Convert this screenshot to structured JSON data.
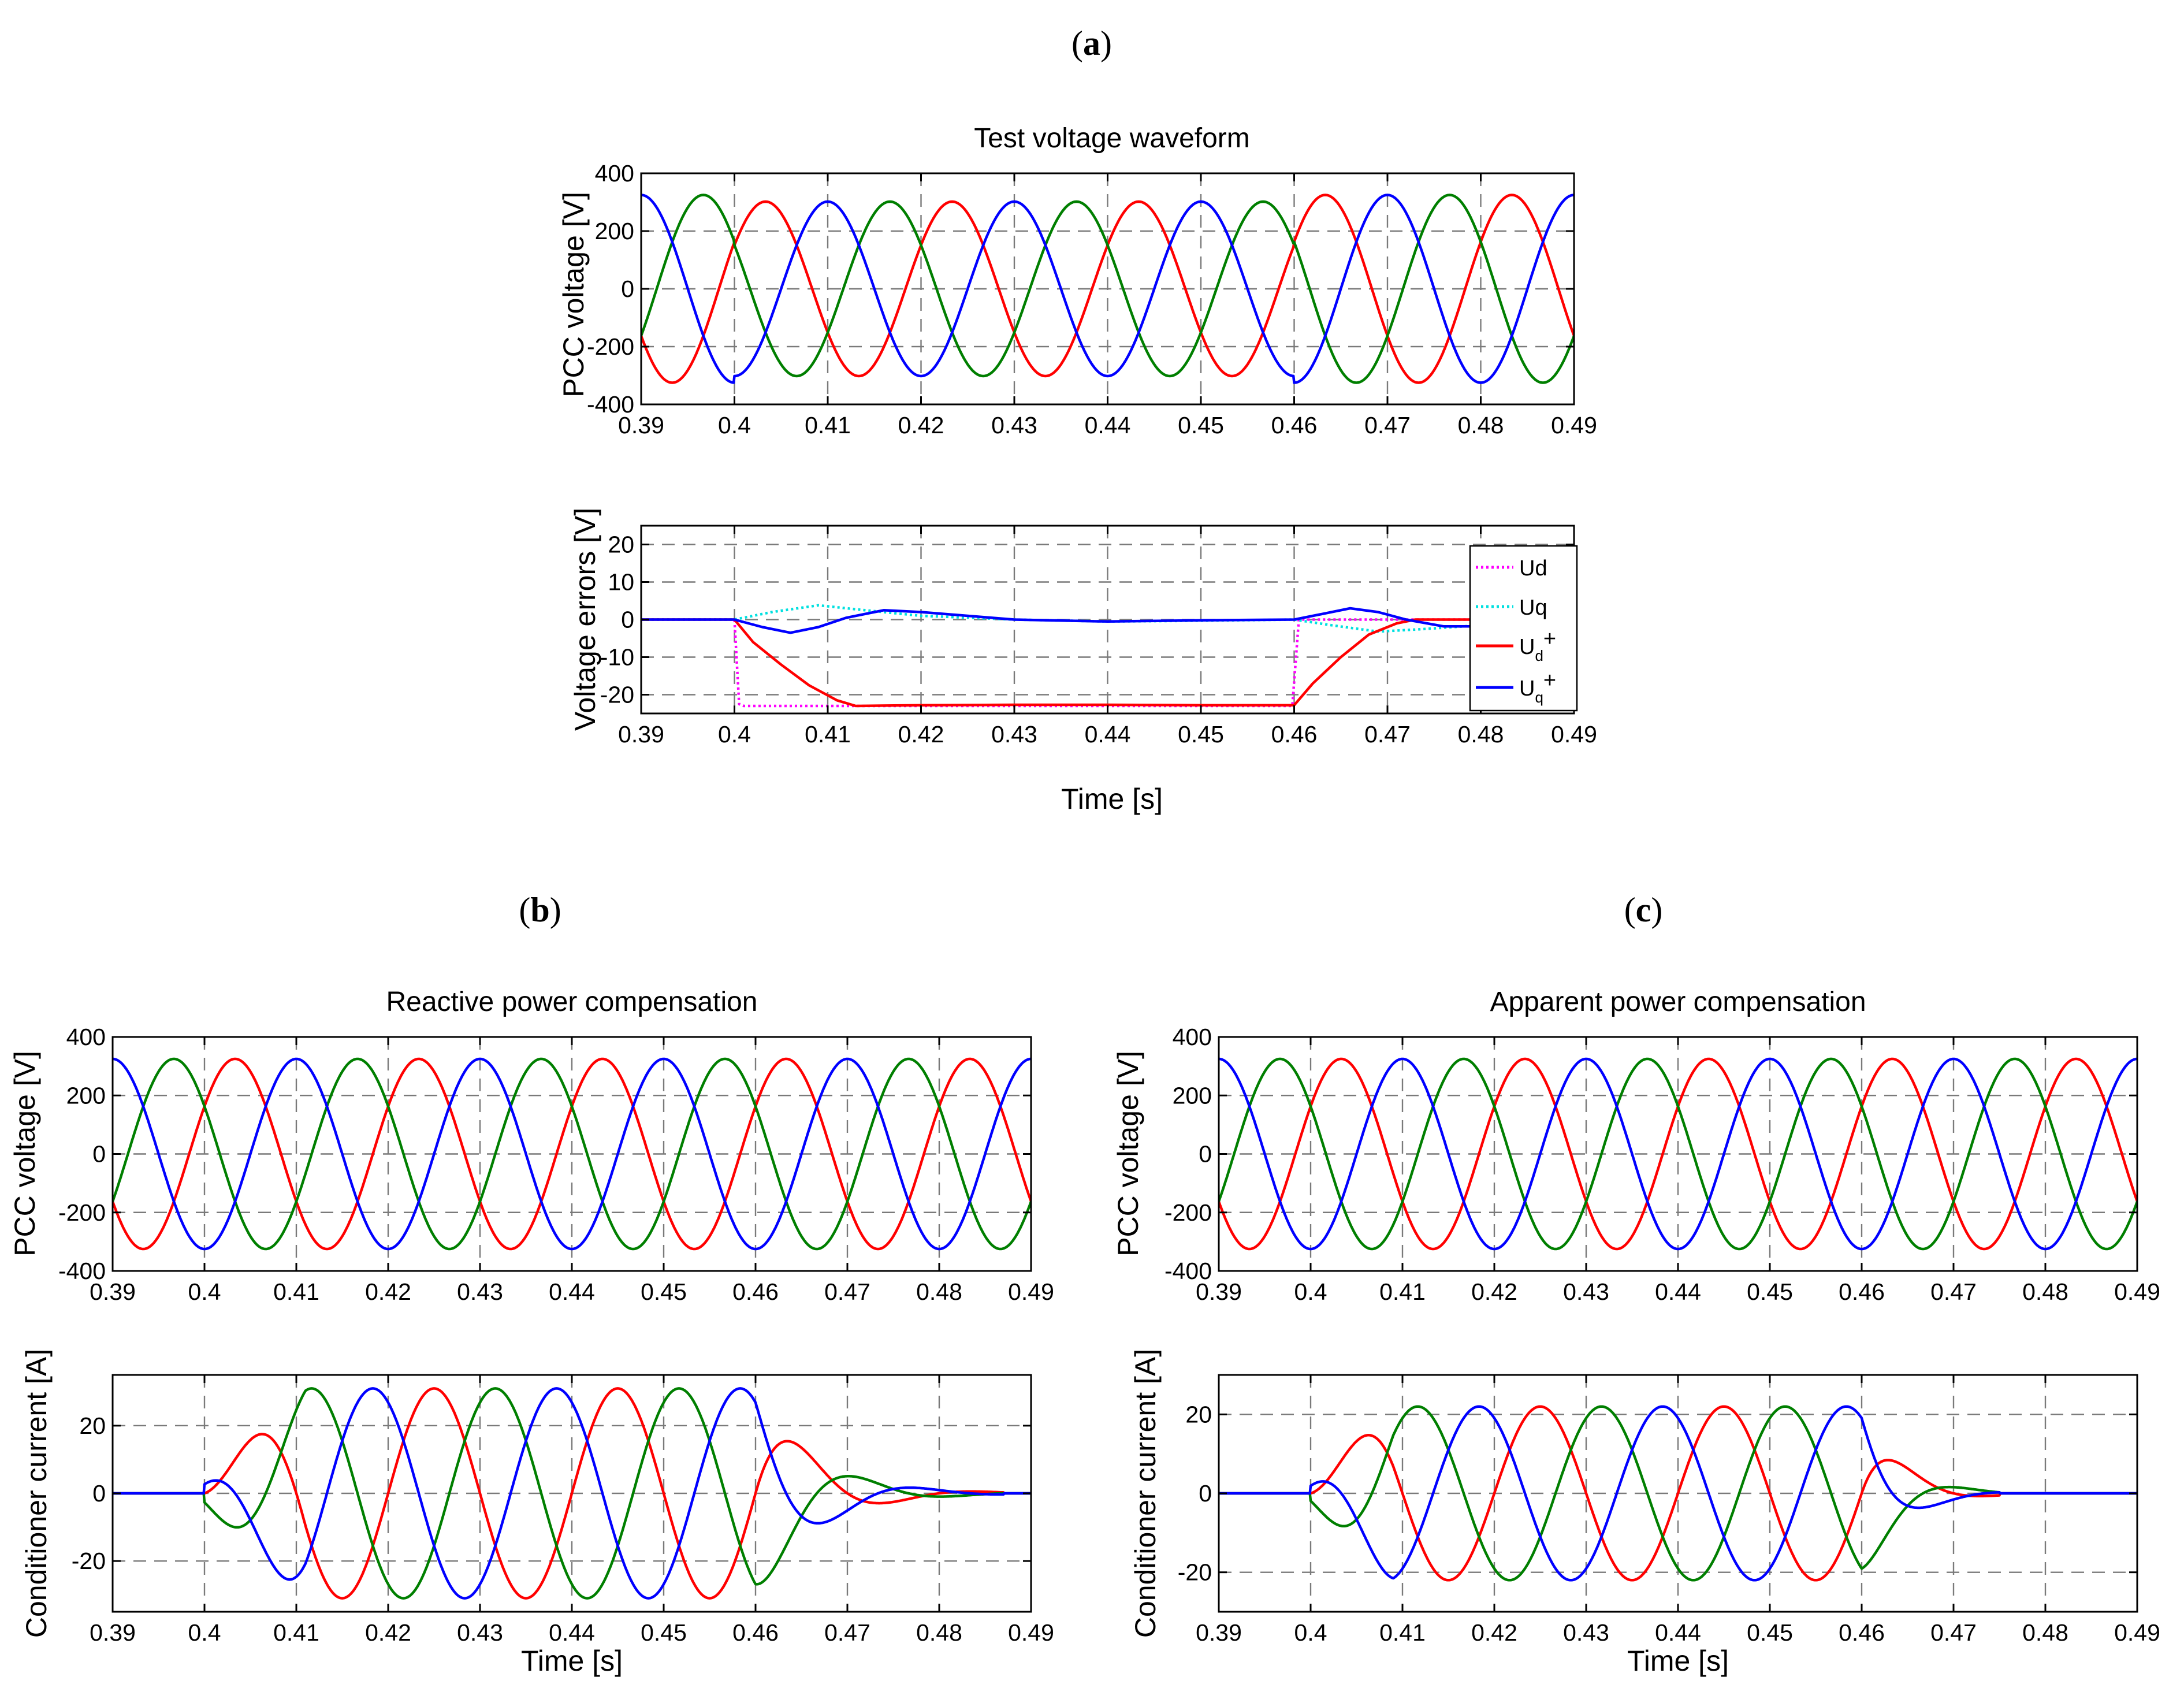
{
  "panels": [
    {
      "id": "a",
      "open": "(",
      "letter": "a",
      "close": ")"
    },
    {
      "id": "b",
      "open": "(",
      "letter": "b",
      "close": ")"
    },
    {
      "id": "c",
      "open": "(",
      "letter": "c",
      "close": ")"
    }
  ],
  "colors": {
    "phase_a": "#ff0000",
    "phase_b": "#007f00",
    "phase_c": "#0000ff",
    "ud": "#ff00ff",
    "uq": "#00e0e0",
    "ud_plus": "#ff0000",
    "uq_plus": "#0000ff"
  },
  "chart_data": [
    {
      "id": "a_top",
      "panel": "a",
      "type": "line",
      "title": "Test voltage waveform",
      "xlabel": "",
      "ylabel": "PCC voltage [V]",
      "xlim": [
        0.39,
        0.49
      ],
      "ylim": [
        -400,
        400
      ],
      "xticks": [
        0.39,
        0.4,
        0.41,
        0.42,
        0.43,
        0.44,
        0.45,
        0.46,
        0.47,
        0.48,
        0.49
      ],
      "xtick_labels": [
        "0.39",
        "0.4",
        "0.41",
        "0.42",
        "0.43",
        "0.44",
        "0.45",
        "0.46",
        "0.47",
        "0.48",
        "0.49"
      ],
      "yticks": [
        -400,
        -200,
        0,
        200,
        400
      ],
      "ytick_labels": [
        "-400",
        "-200",
        "0",
        "200",
        "400"
      ],
      "grid": true,
      "series_kind": "three_phase_voltage",
      "frequency_hz": 50,
      "amplitude_segments": [
        {
          "t_start": 0.39,
          "t_end": 0.4,
          "amplitude": 325
        },
        {
          "t_start": 0.4,
          "t_end": 0.46,
          "amplitude": 302
        },
        {
          "t_start": 0.46,
          "t_end": 0.49,
          "amplitude": 325
        }
      ],
      "series": [
        {
          "phase": "a",
          "color": "#ff0000",
          "phase_shift_deg": 30
        },
        {
          "phase": "b",
          "color": "#007f00",
          "phase_shift_deg": 150
        },
        {
          "phase": "c",
          "color": "#0000ff",
          "phase_shift_deg": 270
        }
      ]
    },
    {
      "id": "a_bottom",
      "panel": "a",
      "type": "line",
      "title": "",
      "xlabel": "Time [s]",
      "ylabel": "Voltage errors [V]",
      "xlim": [
        0.39,
        0.49
      ],
      "ylim": [
        -25,
        25
      ],
      "xticks": [
        0.39,
        0.4,
        0.41,
        0.42,
        0.43,
        0.44,
        0.45,
        0.46,
        0.47,
        0.48,
        0.49
      ],
      "xtick_labels": [
        "0.39",
        "0.4",
        "0.41",
        "0.42",
        "0.43",
        "0.44",
        "0.45",
        "0.46",
        "0.47",
        "0.48",
        "0.49"
      ],
      "yticks": [
        -20,
        -10,
        0,
        10,
        20
      ],
      "ytick_labels": [
        "-20",
        "-10",
        "0",
        "10",
        "20"
      ],
      "grid": true,
      "legend": {
        "position": "right",
        "entries": [
          {
            "key": "ud",
            "main": "Ud",
            "sub": "",
            "sup": "",
            "color": "#ff00ff",
            "style": "dotted"
          },
          {
            "key": "uq",
            "main": "Uq",
            "sub": "",
            "sup": "",
            "color": "#00e0e0",
            "style": "dotted"
          },
          {
            "key": "ud_plus",
            "main": "U",
            "sub": "d",
            "sup": "+",
            "color": "#ff0000",
            "style": "solid"
          },
          {
            "key": "uq_plus",
            "main": "U",
            "sub": "q",
            "sup": "+",
            "color": "#0000ff",
            "style": "solid"
          }
        ]
      },
      "series": [
        {
          "key": "ud",
          "color": "#ff00ff",
          "style": "dotted",
          "x": [
            0.39,
            0.4,
            0.4005,
            0.401,
            0.41,
            0.42,
            0.43,
            0.44,
            0.45,
            0.459,
            0.4598,
            0.4605,
            0.47,
            0.48,
            0.49
          ],
          "y": [
            0,
            0,
            -22.5,
            -23,
            -23,
            -23,
            -23,
            -23,
            -23,
            -23,
            -23,
            0,
            0,
            0,
            0
          ]
        },
        {
          "key": "uq",
          "color": "#00e0e0",
          "style": "dotted",
          "x": [
            0.39,
            0.4,
            0.404,
            0.409,
            0.414,
            0.42,
            0.43,
            0.44,
            0.45,
            0.46,
            0.464,
            0.469,
            0.474,
            0.48,
            0.485,
            0.49
          ],
          "y": [
            0,
            0,
            2,
            3.8,
            2.5,
            1,
            0,
            -0.5,
            -0.3,
            0,
            -1.5,
            -3.2,
            -2.5,
            -1.5,
            -1.5,
            -1.5
          ]
        },
        {
          "key": "ud_plus",
          "color": "#ff0000",
          "style": "solid",
          "x": [
            0.39,
            0.4,
            0.402,
            0.405,
            0.408,
            0.411,
            0.413,
            0.42,
            0.43,
            0.44,
            0.45,
            0.46,
            0.462,
            0.465,
            0.468,
            0.471,
            0.473,
            0.48,
            0.49
          ],
          "y": [
            0,
            0,
            -6,
            -12,
            -17.5,
            -21.5,
            -23,
            -22.8,
            -22.7,
            -22.7,
            -22.8,
            -22.8,
            -17,
            -10,
            -4,
            -1,
            0,
            0,
            -0.3
          ]
        },
        {
          "key": "uq_plus",
          "color": "#0000ff",
          "style": "solid",
          "x": [
            0.39,
            0.4,
            0.403,
            0.406,
            0.409,
            0.412,
            0.416,
            0.42,
            0.425,
            0.43,
            0.44,
            0.45,
            0.46,
            0.463,
            0.466,
            0.469,
            0.472,
            0.476,
            0.48,
            0.49
          ],
          "y": [
            0,
            0,
            -2,
            -3.5,
            -2,
            0.5,
            2.5,
            2,
            1,
            0,
            -0.5,
            -0.2,
            0,
            1.5,
            3,
            2,
            0,
            -1.8,
            -1.8,
            -1.8
          ]
        }
      ]
    },
    {
      "id": "b_top",
      "panel": "b",
      "type": "line",
      "title": "Reactive power compensation",
      "xlabel": "",
      "ylabel": "PCC voltage [V]",
      "xlim": [
        0.39,
        0.49
      ],
      "ylim": [
        -400,
        400
      ],
      "xticks": [
        0.39,
        0.4,
        0.41,
        0.42,
        0.43,
        0.44,
        0.45,
        0.46,
        0.47,
        0.48,
        0.49
      ],
      "xtick_labels": [
        "0.39",
        "0.4",
        "0.41",
        "0.42",
        "0.43",
        "0.44",
        "0.45",
        "0.46",
        "0.47",
        "0.48",
        "0.49"
      ],
      "yticks": [
        -400,
        -200,
        0,
        200,
        400
      ],
      "ytick_labels": [
        "-400",
        "-200",
        "0",
        "200",
        "400"
      ],
      "grid": true,
      "series_kind": "three_phase_voltage",
      "frequency_hz": 50,
      "amplitude_segments": [
        {
          "t_start": 0.39,
          "t_end": 0.49,
          "amplitude": 325
        }
      ],
      "series": [
        {
          "phase": "a",
          "color": "#ff0000",
          "phase_shift_deg": 30
        },
        {
          "phase": "b",
          "color": "#007f00",
          "phase_shift_deg": 150
        },
        {
          "phase": "c",
          "color": "#0000ff",
          "phase_shift_deg": 270
        }
      ]
    },
    {
      "id": "b_bottom",
      "panel": "b",
      "type": "line",
      "title": "",
      "xlabel": "Time [s]",
      "ylabel": "Conditioner current [A]",
      "xlim": [
        0.39,
        0.49
      ],
      "ylim": [
        -35,
        35
      ],
      "xticks": [
        0.39,
        0.4,
        0.41,
        0.42,
        0.43,
        0.44,
        0.45,
        0.46,
        0.47,
        0.48,
        0.49
      ],
      "xtick_labels": [
        "0.39",
        "0.4",
        "0.41",
        "0.42",
        "0.43",
        "0.44",
        "0.45",
        "0.46",
        "0.47",
        "0.48",
        "0.49"
      ],
      "yticks": [
        -20,
        0,
        20
      ],
      "ytick_labels": [
        "-20",
        "0",
        "20"
      ],
      "grid": true,
      "series_kind": "three_phase_current",
      "frequency_hz": 50,
      "ramp_start": 0.4,
      "ramp_end": 0.411,
      "ramp_from": 0.1,
      "steady_until": 0.46,
      "decay_tau": 0.006,
      "decay_end": 0.487,
      "amplitude": 31,
      "series": [
        {
          "phase": "a",
          "color": "#ff0000",
          "phase_shift_deg": 0
        },
        {
          "phase": "b",
          "color": "#007f00",
          "phase_shift_deg": 240
        },
        {
          "phase": "c",
          "color": "#0000ff",
          "phase_shift_deg": 120
        }
      ]
    },
    {
      "id": "c_top",
      "panel": "c",
      "type": "line",
      "title": "Apparent power compensation",
      "xlabel": "",
      "ylabel": "PCC voltage [V]",
      "xlim": [
        0.39,
        0.49
      ],
      "ylim": [
        -400,
        400
      ],
      "xticks": [
        0.39,
        0.4,
        0.41,
        0.42,
        0.43,
        0.44,
        0.45,
        0.46,
        0.47,
        0.48,
        0.49
      ],
      "xtick_labels": [
        "0.39",
        "0.4",
        "0.41",
        "0.42",
        "0.43",
        "0.44",
        "0.45",
        "0.46",
        "0.47",
        "0.48",
        "0.49"
      ],
      "yticks": [
        -400,
        -200,
        0,
        200,
        400
      ],
      "ytick_labels": [
        "-400",
        "-200",
        "0",
        "200",
        "400"
      ],
      "grid": true,
      "series_kind": "three_phase_voltage",
      "frequency_hz": 50,
      "amplitude_segments": [
        {
          "t_start": 0.39,
          "t_end": 0.49,
          "amplitude": 325
        }
      ],
      "series": [
        {
          "phase": "a",
          "color": "#ff0000",
          "phase_shift_deg": 30
        },
        {
          "phase": "b",
          "color": "#007f00",
          "phase_shift_deg": 150
        },
        {
          "phase": "c",
          "color": "#0000ff",
          "phase_shift_deg": 270
        }
      ]
    },
    {
      "id": "c_bottom",
      "panel": "c",
      "type": "line",
      "title": "",
      "xlabel": "Time [s]",
      "ylabel": "Conditioner current [A]",
      "xlim": [
        0.39,
        0.49
      ],
      "ylim": [
        -30,
        30
      ],
      "xticks": [
        0.39,
        0.4,
        0.41,
        0.42,
        0.43,
        0.44,
        0.45,
        0.46,
        0.47,
        0.48,
        0.49
      ],
      "xtick_labels": [
        "0.39",
        "0.4",
        "0.41",
        "0.42",
        "0.43",
        "0.44",
        "0.45",
        "0.46",
        "0.47",
        "0.48",
        "0.49"
      ],
      "yticks": [
        -20,
        0,
        20
      ],
      "ytick_labels": [
        "-20",
        "0",
        "20"
      ],
      "grid": true,
      "series_kind": "three_phase_current",
      "frequency_hz": 50,
      "ramp_start": 0.4,
      "ramp_end": 0.409,
      "ramp_from": 0.1,
      "steady_until": 0.46,
      "decay_tau": 0.004,
      "decay_end": 0.475,
      "amplitude": 22,
      "series": [
        {
          "phase": "a",
          "color": "#ff0000",
          "phase_shift_deg": 0
        },
        {
          "phase": "b",
          "color": "#007f00",
          "phase_shift_deg": 240
        },
        {
          "phase": "c",
          "color": "#0000ff",
          "phase_shift_deg": 120
        }
      ]
    }
  ]
}
